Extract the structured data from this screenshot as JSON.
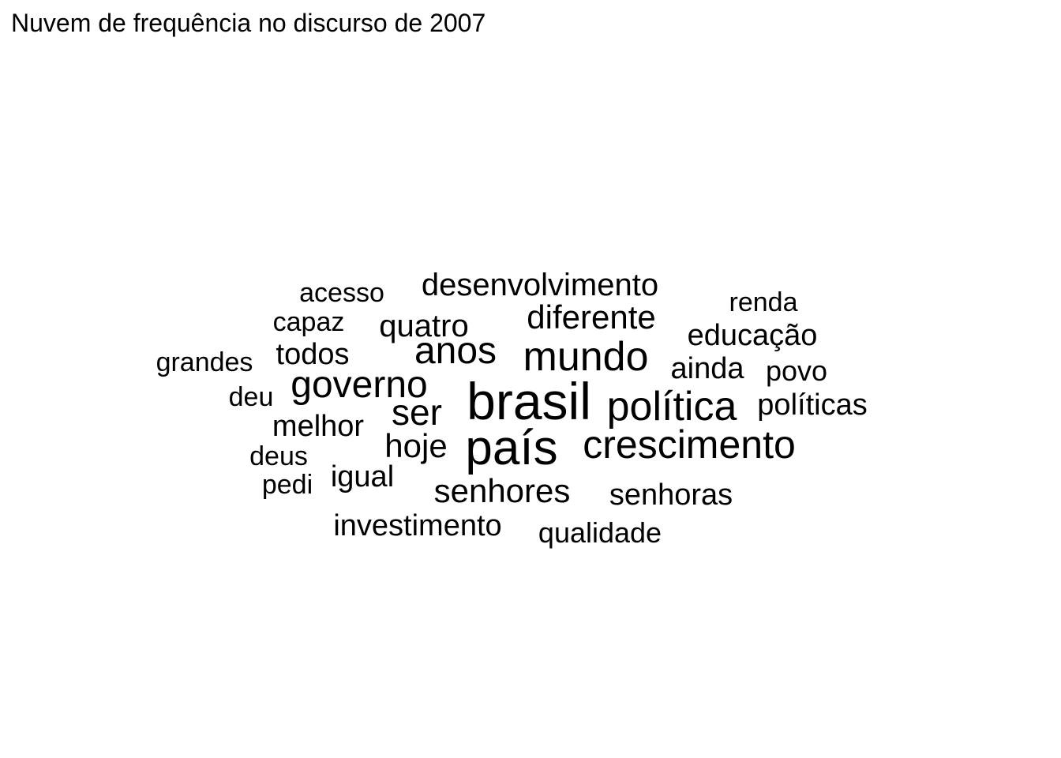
{
  "chart_data": {
    "type": "wordcloud",
    "title": "Nuvem de frequência no discurso de 2007",
    "words": [
      {
        "text": "brasil"
      },
      {
        "text": "país"
      },
      {
        "text": "política"
      },
      {
        "text": "crescimento"
      },
      {
        "text": "mundo"
      },
      {
        "text": "governo"
      },
      {
        "text": "anos"
      },
      {
        "text": "ser"
      },
      {
        "text": "desenvolvimento"
      },
      {
        "text": "diferente"
      },
      {
        "text": "quatro"
      },
      {
        "text": "hoje"
      },
      {
        "text": "senhores"
      },
      {
        "text": "educação"
      },
      {
        "text": "todos"
      },
      {
        "text": "melhor"
      },
      {
        "text": "ainda"
      },
      {
        "text": "políticas"
      },
      {
        "text": "senhoras"
      },
      {
        "text": "investimento"
      },
      {
        "text": "igual"
      },
      {
        "text": "povo"
      },
      {
        "text": "qualidade"
      },
      {
        "text": "acesso"
      },
      {
        "text": "grandes"
      },
      {
        "text": "renda"
      },
      {
        "text": "capaz"
      },
      {
        "text": "deus"
      },
      {
        "text": "deu"
      },
      {
        "text": "pedi"
      }
    ]
  }
}
